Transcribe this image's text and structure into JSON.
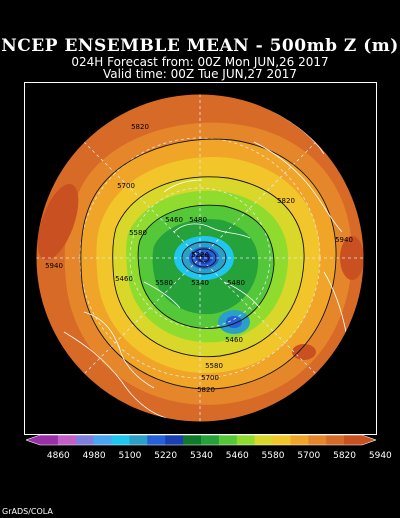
{
  "header": {
    "title": "NCEP ENSEMBLE MEAN - 500mb Z (m)",
    "forecast_line": "024H Forecast from: 00Z Mon JUN,26 2017",
    "valid_line": "Valid time: 00Z Tue JUN,27 2017"
  },
  "colorbar": {
    "labels": [
      "4860",
      "4980",
      "5100",
      "5220",
      "5340",
      "5460",
      "5580",
      "5700",
      "5820",
      "5940"
    ],
    "colors": [
      "#9b2fa8",
      "#c45fc9",
      "#7f7fe0",
      "#4aa6f2",
      "#1fc7f0",
      "#2aa0c8",
      "#2460d8",
      "#1a3fb5",
      "#0f7a2a",
      "#26a23a",
      "#55c83a",
      "#8fdc2e",
      "#d9d82a",
      "#f2c52a",
      "#f0a528",
      "#e6862a",
      "#d86a28",
      "#c95020"
    ]
  },
  "contour_labels": [
    "5820",
    "5700",
    "5580",
    "5460",
    "5220",
    "5340",
    "5480",
    "5940",
    "5820",
    "5580",
    "5460",
    "5580",
    "5700",
    "5820",
    "5940",
    "5480",
    "5460"
  ],
  "credit": "GrADS/COLA"
}
